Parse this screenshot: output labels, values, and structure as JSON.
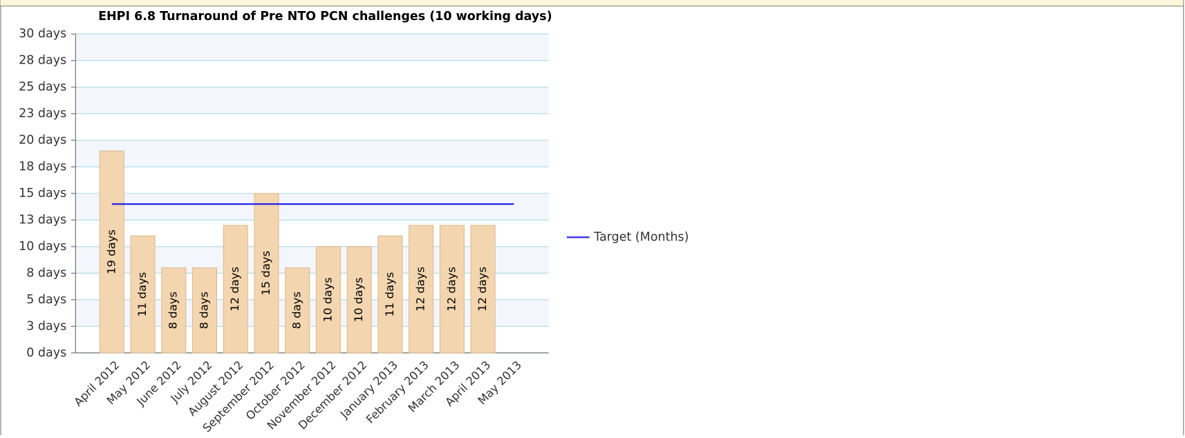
{
  "chart_data": {
    "type": "bar",
    "title": "EHPI 6.8 Turnaround of Pre NTO PCN challenges (10 working days)",
    "categories": [
      "April 2012",
      "May 2012",
      "June 2012",
      "July 2012",
      "August 2012",
      "September 2012",
      "October 2012",
      "November 2012",
      "December 2012",
      "January 2013",
      "February 2013",
      "March 2013",
      "April 2013",
      "May 2013"
    ],
    "series": [
      {
        "type": "bar",
        "color": "#f3d6b0",
        "values": [
          19,
          11,
          8,
          8,
          12,
          15,
          8,
          10,
          10,
          11,
          12,
          12,
          12,
          null
        ],
        "value_labels": [
          "19 days",
          "11 days",
          "8 days",
          "8 days",
          "12 days",
          "15 days",
          "8 days",
          "10 days",
          "10 days",
          "11 days",
          "12 days",
          "12 days",
          "12 days",
          null
        ]
      },
      {
        "type": "line",
        "name": "Target (Months)",
        "color": "#1f1fe6",
        "values": [
          14,
          14,
          14,
          14,
          14,
          14,
          14,
          14,
          14,
          14,
          14,
          14,
          14,
          14
        ]
      }
    ],
    "ylim": [
      0,
      30
    ],
    "yticks": [
      {
        "value": 0,
        "label": "0 days"
      },
      {
        "value": 2.5,
        "label": "3 days"
      },
      {
        "value": 5,
        "label": "5 days"
      },
      {
        "value": 7.5,
        "label": "8 days"
      },
      {
        "value": 10,
        "label": "10 days"
      },
      {
        "value": 12.5,
        "label": "13 days"
      },
      {
        "value": 15,
        "label": "15 days"
      },
      {
        "value": 17.5,
        "label": "18 days"
      },
      {
        "value": 20,
        "label": "20 days"
      },
      {
        "value": 22.5,
        "label": "23 days"
      },
      {
        "value": 25,
        "label": "25 days"
      },
      {
        "value": 27.5,
        "label": "28 days"
      },
      {
        "value": 30,
        "label": "30 days"
      }
    ],
    "grid": true,
    "legend": "right"
  }
}
